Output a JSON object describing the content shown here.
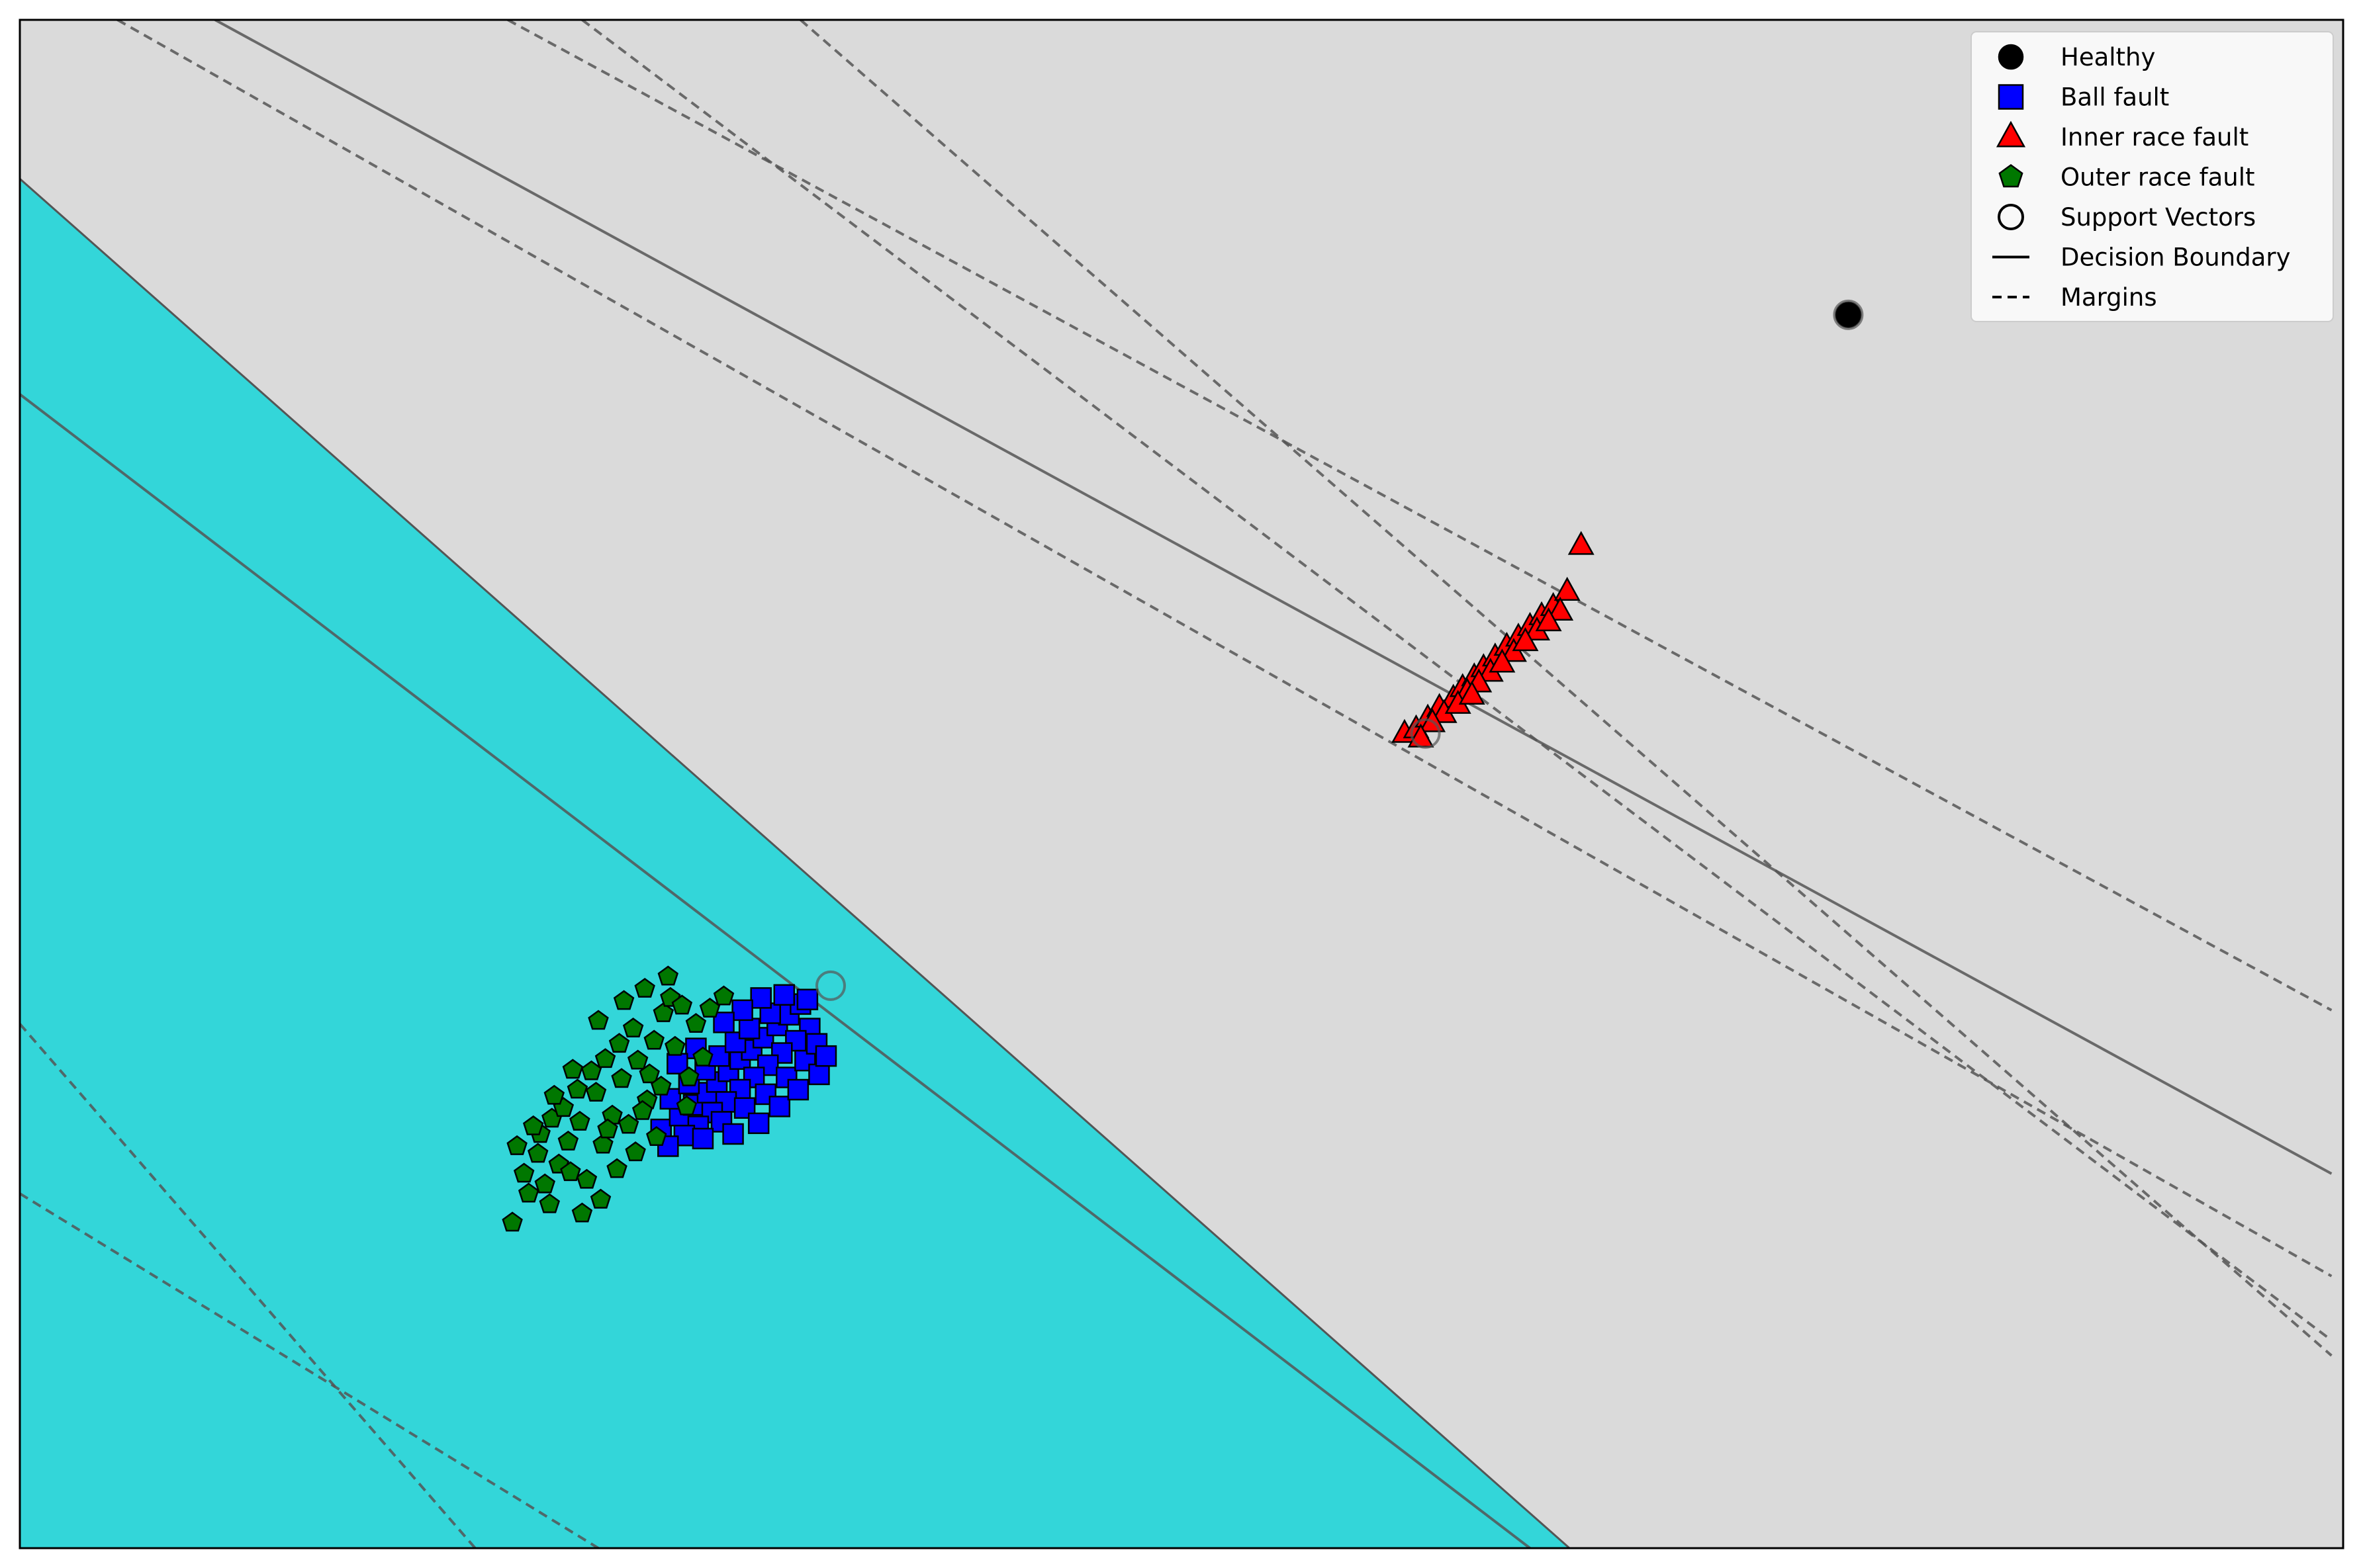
{
  "chart_data": {
    "type": "scatter",
    "title": "",
    "xlabel": "",
    "ylabel": "",
    "xlim": [
      0,
      100
    ],
    "ylim": [
      0,
      100
    ],
    "grid": false,
    "axis_ticks": false,
    "legend_position": "top-right",
    "colors": {
      "healthy": "#000000",
      "ball_fault": "#0000ff",
      "inner_race_fault": "#ff0000",
      "outer_race_fault": "#007700",
      "region_fill": "#33d6d9",
      "background_region": "#dadada",
      "boundary_line": "#555555"
    },
    "legend": [
      {
        "label": "Healthy",
        "marker": "circle-filled",
        "color": "#000000"
      },
      {
        "label": "Ball fault",
        "marker": "square",
        "color": "#0000ff"
      },
      {
        "label": "Inner race fault",
        "marker": "triangle",
        "color": "#ff0000"
      },
      {
        "label": "Outer race fault",
        "marker": "pentagon",
        "color": "#007700"
      },
      {
        "label": "Support Vectors",
        "marker": "circle-open",
        "color": "#000000"
      },
      {
        "label": "Decision Boundary",
        "marker": "solid-line",
        "color": "#000000"
      },
      {
        "label": "Margins",
        "marker": "dashed-line",
        "color": "#000000"
      }
    ],
    "region": {
      "name": "class region",
      "polygon": [
        [
          0,
          89.6
        ],
        [
          66.7,
          0
        ],
        [
          0,
          0
        ]
      ]
    },
    "boundaries": [
      {
        "kind": "decision",
        "points": [
          [
            8.4,
            100
          ],
          [
            99.5,
            24.5
          ]
        ]
      },
      {
        "kind": "decision",
        "points": [
          [
            0,
            75.5
          ],
          [
            65.0,
            0
          ]
        ]
      },
      {
        "kind": "margin",
        "points": [
          [
            4.2,
            100
          ],
          [
            99.5,
            17.8
          ]
        ]
      },
      {
        "kind": "margin",
        "points": [
          [
            21.0,
            100
          ],
          [
            99.5,
            35.2
          ]
        ]
      },
      {
        "kind": "margin",
        "points": [
          [
            24.2,
            100
          ],
          [
            99.5,
            13.6
          ]
        ]
      },
      {
        "kind": "margin",
        "points": [
          [
            33.6,
            100
          ],
          [
            99.5,
            12.6
          ]
        ]
      },
      {
        "kind": "margin",
        "points": [
          [
            0,
            34.3
          ],
          [
            19.6,
            0
          ]
        ]
      },
      {
        "kind": "margin",
        "points": [
          [
            0,
            23.2
          ],
          [
            24.9,
            0
          ]
        ]
      }
    ],
    "series": [
      {
        "name": "Healthy",
        "marker": "circle",
        "points": [
          [
            78.7,
            80.7
          ]
        ]
      },
      {
        "name": "Support Vectors",
        "marker": "circle-open",
        "points": [
          [
            78.7,
            80.7
          ],
          [
            34.9,
            36.8
          ],
          [
            60.5,
            53.3
          ]
        ]
      },
      {
        "name": "Inner race fault",
        "marker": "triangle",
        "points": [
          [
            59.6,
            53.3
          ],
          [
            60.1,
            53.6
          ],
          [
            60.6,
            54.3
          ],
          [
            61.1,
            55.0
          ],
          [
            61.7,
            55.6
          ],
          [
            62.1,
            56.3
          ],
          [
            62.6,
            57.0
          ],
          [
            63.0,
            57.6
          ],
          [
            63.5,
            58.3
          ],
          [
            64.0,
            59.0
          ],
          [
            64.5,
            59.6
          ],
          [
            65.0,
            60.3
          ],
          [
            65.5,
            61.0
          ],
          [
            66.0,
            61.6
          ],
          [
            66.6,
            62.6
          ],
          [
            67.2,
            65.6
          ],
          [
            61.3,
            54.6
          ],
          [
            62.3,
            56.0
          ],
          [
            63.3,
            57.3
          ],
          [
            64.3,
            58.6
          ],
          [
            65.3,
            60.0
          ],
          [
            66.3,
            61.3
          ],
          [
            60.8,
            54.0
          ],
          [
            62.8,
            56.6
          ],
          [
            64.8,
            59.3
          ],
          [
            61.9,
            55.2
          ],
          [
            63.8,
            57.9
          ],
          [
            65.8,
            60.6
          ],
          [
            60.3,
            53.0
          ],
          [
            62.5,
            55.8
          ]
        ]
      },
      {
        "name": "Ball fault",
        "marker": "square",
        "points": [
          [
            27.6,
            27.4
          ],
          [
            28.4,
            28.3
          ],
          [
            29.0,
            29.0
          ],
          [
            29.6,
            29.8
          ],
          [
            30.0,
            30.5
          ],
          [
            30.5,
            31.2
          ],
          [
            31.0,
            32.0
          ],
          [
            31.5,
            32.6
          ],
          [
            32.0,
            33.4
          ],
          [
            32.6,
            34.2
          ],
          [
            33.1,
            34.9
          ],
          [
            33.6,
            35.6
          ],
          [
            34.0,
            34.0
          ],
          [
            33.4,
            33.2
          ],
          [
            32.8,
            32.4
          ],
          [
            32.2,
            31.6
          ],
          [
            31.6,
            30.8
          ],
          [
            31.0,
            30.0
          ],
          [
            30.4,
            29.2
          ],
          [
            29.8,
            28.5
          ],
          [
            29.2,
            27.6
          ],
          [
            28.6,
            27.0
          ],
          [
            30.2,
            27.9
          ],
          [
            31.2,
            28.8
          ],
          [
            32.1,
            29.7
          ],
          [
            33.0,
            30.8
          ],
          [
            33.8,
            31.9
          ],
          [
            34.3,
            33.0
          ],
          [
            28.0,
            29.4
          ],
          [
            28.8,
            30.4
          ],
          [
            29.5,
            31.3
          ],
          [
            30.1,
            32.2
          ],
          [
            30.8,
            33.1
          ],
          [
            31.4,
            34.0
          ],
          [
            32.3,
            35.0
          ],
          [
            27.9,
            26.3
          ],
          [
            29.4,
            26.8
          ],
          [
            30.7,
            27.1
          ],
          [
            31.8,
            27.8
          ],
          [
            32.7,
            28.9
          ],
          [
            33.5,
            30.0
          ],
          [
            34.4,
            31.0
          ],
          [
            34.7,
            32.2
          ],
          [
            33.9,
            35.9
          ],
          [
            32.9,
            36.2
          ],
          [
            31.9,
            36.0
          ],
          [
            31.1,
            35.2
          ],
          [
            30.3,
            34.4
          ],
          [
            29.1,
            32.7
          ],
          [
            28.3,
            31.7
          ]
        ]
      },
      {
        "name": "Outer race fault",
        "marker": "pentagon",
        "points": [
          [
            21.4,
            26.3
          ],
          [
            21.9,
            23.2
          ],
          [
            22.4,
            27.1
          ],
          [
            22.9,
            28.1
          ],
          [
            23.2,
            25.1
          ],
          [
            23.6,
            26.6
          ],
          [
            24.1,
            27.9
          ],
          [
            24.4,
            24.1
          ],
          [
            24.8,
            29.8
          ],
          [
            25.1,
            26.4
          ],
          [
            25.5,
            28.3
          ],
          [
            25.9,
            30.7
          ],
          [
            26.2,
            27.7
          ],
          [
            26.6,
            31.9
          ],
          [
            27.0,
            29.3
          ],
          [
            27.3,
            33.2
          ],
          [
            27.7,
            35.0
          ],
          [
            28.0,
            36.0
          ],
          [
            28.5,
            35.5
          ],
          [
            29.1,
            34.3
          ],
          [
            29.7,
            35.3
          ],
          [
            30.3,
            36.1
          ],
          [
            21.7,
            24.5
          ],
          [
            22.3,
            25.8
          ],
          [
            22.8,
            22.5
          ],
          [
            23.4,
            28.8
          ],
          [
            24.0,
            30.0
          ],
          [
            24.6,
            31.2
          ],
          [
            25.2,
            32.0
          ],
          [
            25.8,
            33.0
          ],
          [
            26.4,
            34.0
          ],
          [
            27.1,
            31.0
          ],
          [
            27.6,
            30.2
          ],
          [
            28.2,
            32.8
          ],
          [
            28.8,
            30.8
          ],
          [
            21.2,
            21.3
          ],
          [
            24.2,
            21.9
          ],
          [
            25.0,
            22.8
          ],
          [
            25.7,
            24.8
          ],
          [
            26.5,
            25.9
          ],
          [
            23.0,
            29.6
          ],
          [
            23.8,
            31.3
          ],
          [
            24.9,
            34.5
          ],
          [
            26.0,
            35.8
          ],
          [
            27.9,
            37.4
          ],
          [
            26.9,
            36.6
          ],
          [
            22.1,
            27.6
          ],
          [
            29.4,
            32.1
          ],
          [
            28.7,
            28.9
          ],
          [
            27.4,
            26.9
          ],
          [
            22.6,
            23.8
          ],
          [
            23.7,
            24.6
          ],
          [
            25.3,
            27.4
          ],
          [
            26.8,
            28.6
          ]
        ]
      }
    ]
  }
}
